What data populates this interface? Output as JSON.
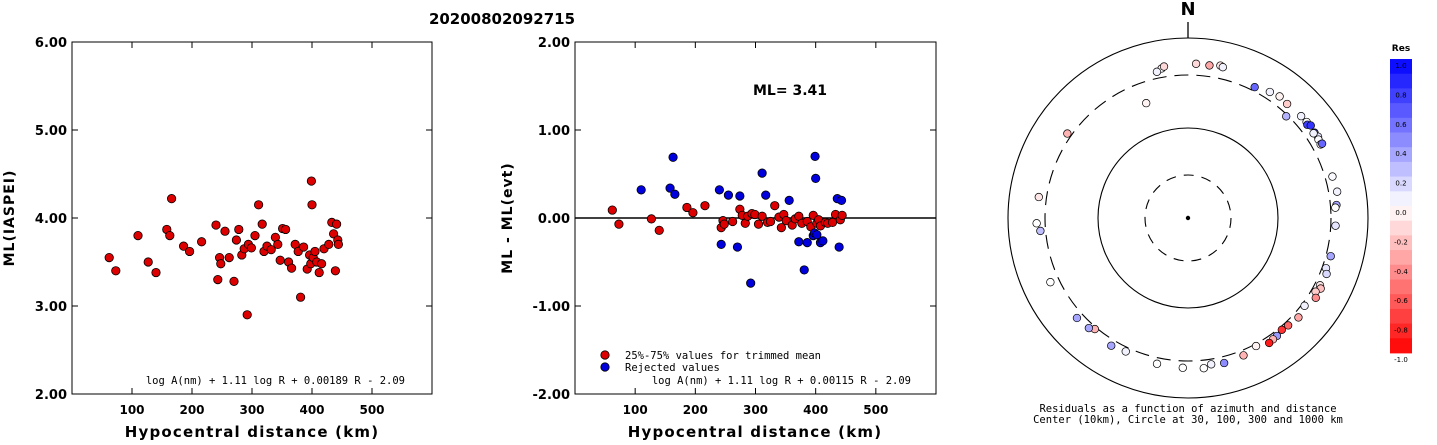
{
  "page_title": "20200802092715",
  "chart_data": [
    {
      "type": "scatter",
      "xlabel": "Hypocentral distance (km)",
      "ylabel": "ML(IASPEI)",
      "xlim": [
        0,
        600
      ],
      "ylim": [
        2.0,
        6.0
      ],
      "x_ticks": [
        "100",
        "200",
        "300",
        "400",
        "500"
      ],
      "y_ticks": [
        "2.00",
        "3.00",
        "4.00",
        "5.00",
        "6.00"
      ],
      "formula": "log A(nm) + 1.11 log R + 0.00189 R - 2.09",
      "grid": false,
      "series": [
        {
          "color": "#dd0000",
          "points": [
            [
              62,
              3.55
            ],
            [
              73,
              3.4
            ],
            [
              110,
              3.8
            ],
            [
              127,
              3.5
            ],
            [
              140,
              3.38
            ],
            [
              158,
              3.87
            ],
            [
              163,
              3.8
            ],
            [
              166,
              4.22
            ],
            [
              186,
              3.68
            ],
            [
              196,
              3.62
            ],
            [
              216,
              3.73
            ],
            [
              240,
              3.92
            ],
            [
              243,
              3.3
            ],
            [
              246,
              3.55
            ],
            [
              248,
              3.48
            ],
            [
              255,
              3.85
            ],
            [
              262,
              3.55
            ],
            [
              270,
              3.28
            ],
            [
              274,
              3.75
            ],
            [
              278,
              3.87
            ],
            [
              283,
              3.58
            ],
            [
              287,
              3.65
            ],
            [
              292,
              2.9
            ],
            [
              294,
              3.7
            ],
            [
              299,
              3.66
            ],
            [
              305,
              3.8
            ],
            [
              311,
              4.15
            ],
            [
              317,
              3.93
            ],
            [
              320,
              3.62
            ],
            [
              325,
              3.68
            ],
            [
              332,
              3.64
            ],
            [
              339,
              3.78
            ],
            [
              343,
              3.7
            ],
            [
              347,
              3.52
            ],
            [
              351,
              3.88
            ],
            [
              356,
              3.87
            ],
            [
              361,
              3.5
            ],
            [
              366,
              3.43
            ],
            [
              372,
              3.7
            ],
            [
              377,
              3.62
            ],
            [
              381,
              3.1
            ],
            [
              386,
              3.67
            ],
            [
              392,
              3.42
            ],
            [
              396,
              3.58
            ],
            [
              398,
              3.48
            ],
            [
              399,
              4.42
            ],
            [
              400,
              4.15
            ],
            [
              402,
              3.55
            ],
            [
              405,
              3.62
            ],
            [
              408,
              3.5
            ],
            [
              412,
              3.38
            ],
            [
              416,
              3.48
            ],
            [
              420,
              3.65
            ],
            [
              428,
              3.7
            ],
            [
              433,
              3.95
            ],
            [
              436,
              3.82
            ],
            [
              439,
              3.4
            ],
            [
              441,
              3.93
            ],
            [
              443,
              3.75
            ],
            [
              444,
              3.7
            ]
          ]
        }
      ]
    },
    {
      "type": "scatter",
      "xlabel": "Hypocentral distance (km)",
      "ylabel": "ML - ML(evt)",
      "xlim": [
        0,
        600
      ],
      "ylim": [
        -2.0,
        2.0
      ],
      "x_ticks": [
        "100",
        "200",
        "300",
        "400",
        "500"
      ],
      "y_ticks": [
        "-2.00",
        "-1.00",
        "0.00",
        "1.00",
        "2.00"
      ],
      "reference_line_y": 0,
      "annotation": "ML= 3.41",
      "formula": "log A(nm) + 1.11 log R + 0.00115 R - 2.09",
      "legend_position": "bottom-left",
      "grid": false,
      "series": [
        {
          "name": "25%-75% values for trimmed mean",
          "color": "#dd0000",
          "points": [
            [
              62,
              0.09
            ],
            [
              73,
              -0.07
            ],
            [
              127,
              -0.01
            ],
            [
              140,
              -0.14
            ],
            [
              186,
              0.12
            ],
            [
              196,
              0.06
            ],
            [
              216,
              0.14
            ],
            [
              243,
              -0.11
            ],
            [
              246,
              -0.03
            ],
            [
              248,
              -0.07
            ],
            [
              262,
              -0.04
            ],
            [
              274,
              0.1
            ],
            [
              278,
              0.03
            ],
            [
              283,
              -0.06
            ],
            [
              287,
              0.02
            ],
            [
              294,
              0.05
            ],
            [
              299,
              0.04
            ],
            [
              305,
              -0.07
            ],
            [
              311,
              0.02
            ],
            [
              320,
              -0.05
            ],
            [
              325,
              -0.04
            ],
            [
              332,
              0.14
            ],
            [
              339,
              0.01
            ],
            [
              343,
              -0.11
            ],
            [
              347,
              0.04
            ],
            [
              351,
              -0.03
            ],
            [
              361,
              -0.08
            ],
            [
              366,
              -0.01
            ],
            [
              372,
              0.02
            ],
            [
              377,
              -0.06
            ],
            [
              386,
              -0.04
            ],
            [
              392,
              -0.1
            ],
            [
              396,
              0.03
            ],
            [
              402,
              -0.06
            ],
            [
              405,
              -0.02
            ],
            [
              408,
              -0.09
            ],
            [
              416,
              -0.05
            ],
            [
              420,
              -0.06
            ],
            [
              428,
              -0.05
            ],
            [
              433,
              0.04
            ],
            [
              441,
              -0.02
            ],
            [
              444,
              0.03
            ]
          ]
        },
        {
          "name": "Rejected values",
          "color": "#0000dd",
          "points": [
            [
              110,
              0.32
            ],
            [
              158,
              0.34
            ],
            [
              163,
              0.69
            ],
            [
              166,
              0.27
            ],
            [
              240,
              0.32
            ],
            [
              243,
              -0.3
            ],
            [
              255,
              0.26
            ],
            [
              270,
              -0.33
            ],
            [
              274,
              0.25
            ],
            [
              292,
              -0.74
            ],
            [
              311,
              0.51
            ],
            [
              317,
              0.26
            ],
            [
              356,
              0.2
            ],
            [
              372,
              -0.27
            ],
            [
              381,
              -0.59
            ],
            [
              386,
              -0.28
            ],
            [
              396,
              -0.2
            ],
            [
              398,
              -0.17
            ],
            [
              399,
              0.7
            ],
            [
              400,
              0.45
            ],
            [
              402,
              -0.19
            ],
            [
              408,
              -0.28
            ],
            [
              412,
              -0.26
            ],
            [
              436,
              0.22
            ],
            [
              439,
              -0.33
            ],
            [
              443,
              0.2
            ]
          ]
        }
      ]
    },
    {
      "type": "polar-scatter",
      "north_label": "N",
      "caption_line1": "Residuals as a function of azimuth and distance",
      "caption_line2": "Center (10km), Circle at 30, 100, 300 and 1000 km",
      "colorbar_title": "Res",
      "colorbar_ticks": [
        "1.0",
        "0.8",
        "0.6",
        "0.4",
        "0.2",
        "0.0",
        "-0.2",
        "-0.4",
        "-0.6",
        "-0.8",
        "-1.0"
      ],
      "color_scale": {
        "positive": "#0000ff",
        "zero": "#ffffff",
        "negative": "#ff0000"
      },
      "rings_km": [
        30,
        100,
        300,
        1000
      ],
      "stations": [
        {
          "az": 8,
          "dist": 430,
          "res": -0.35
        },
        {
          "az": 3,
          "dist": 435,
          "res": -0.15
        },
        {
          "az": 12,
          "dist": 455,
          "res": -0.1
        },
        {
          "az": 13,
          "dist": 440,
          "res": 0.05
        },
        {
          "az": 350,
          "dist": 400,
          "res": 0.0
        },
        {
          "az": 348,
          "dist": 370,
          "res": 0.05
        },
        {
          "az": 351,
          "dist": 420,
          "res": -0.15
        },
        {
          "az": 27,
          "dist": 340,
          "res": 0.6
        },
        {
          "az": 33,
          "dist": 380,
          "res": 0.05
        },
        {
          "az": 37,
          "dist": 405,
          "res": -0.05
        },
        {
          "az": 41,
          "dist": 390,
          "res": -0.2
        },
        {
          "az": 48,
          "dist": 405,
          "res": 0.05
        },
        {
          "az": 51,
          "dist": 410,
          "res": 0.0
        },
        {
          "az": 52,
          "dist": 395,
          "res": 0.75
        },
        {
          "az": 53,
          "dist": 425,
          "res": 0.8
        },
        {
          "az": 56,
          "dist": 410,
          "res": 0.7
        },
        {
          "az": 58,
          "dist": 420,
          "res": 0.1
        },
        {
          "az": 56,
          "dist": 395,
          "res": 0.05
        },
        {
          "az": 59,
          "dist": 405,
          "res": 0.02
        },
        {
          "az": 61,
          "dist": 398,
          "res": -0.05
        },
        {
          "az": 61,
          "dist": 420,
          "res": 0.6
        },
        {
          "az": 44,
          "dist": 290,
          "res": 0.3
        },
        {
          "az": 74,
          "dist": 380,
          "res": 0.02
        },
        {
          "az": 80,
          "dist": 395,
          "res": 0.05
        },
        {
          "az": 85,
          "dist": 365,
          "res": 0.35
        },
        {
          "az": 86,
          "dist": 350,
          "res": 0.0
        },
        {
          "az": 93,
          "dist": 350,
          "res": 0.1
        },
        {
          "az": 105,
          "dist": 350,
          "res": 0.35
        },
        {
          "az": 110,
          "dist": 340,
          "res": 0.1
        },
        {
          "az": 112,
          "dist": 370,
          "res": 0.15
        },
        {
          "az": 117,
          "dist": 355,
          "res": -0.1
        },
        {
          "az": 118,
          "dist": 380,
          "res": -0.25
        },
        {
          "az": 120,
          "dist": 345,
          "res": -0.2
        },
        {
          "az": 122,
          "dist": 385,
          "res": -0.45
        },
        {
          "az": 127,
          "dist": 330,
          "res": 0.05
        },
        {
          "az": 132,
          "dist": 360,
          "res": -0.35
        },
        {
          "az": 137,
          "dist": 340,
          "res": -0.6
        },
        {
          "az": 140,
          "dist": 330,
          "res": -0.8
        },
        {
          "az": 143,
          "dist": 350,
          "res": 0.4
        },
        {
          "az": 145,
          "dist": 355,
          "res": -0.3
        },
        {
          "az": 147,
          "dist": 365,
          "res": -0.9
        },
        {
          "az": 152,
          "dist": 320,
          "res": -0.05
        },
        {
          "az": 158,
          "dist": 355,
          "res": -0.3
        },
        {
          "az": 166,
          "dist": 370,
          "res": 0.45
        },
        {
          "az": 171,
          "dist": 355,
          "res": 0.05
        },
        {
          "az": 174,
          "dist": 390,
          "res": 0.0
        },
        {
          "az": 182,
          "dist": 375,
          "res": 0.0
        },
        {
          "az": 192,
          "dist": 365,
          "res": 0.0
        },
        {
          "az": 205,
          "dist": 345,
          "res": 0.05
        },
        {
          "az": 211,
          "dist": 365,
          "res": 0.35
        },
        {
          "az": 220,
          "dist": 320,
          "res": -0.3
        },
        {
          "az": 222,
          "dist": 355,
          "res": 0.35
        },
        {
          "az": 228,
          "dist": 370,
          "res": 0.35
        },
        {
          "az": 245,
          "dist": 400,
          "res": 0.0
        },
        {
          "az": 265,
          "dist": 355,
          "res": 0.25
        },
        {
          "az": 268,
          "dist": 395,
          "res": 0.0
        },
        {
          "az": 278,
          "dist": 385,
          "res": -0.1
        },
        {
          "az": 305,
          "dist": 345,
          "res": -0.3
        },
        {
          "az": 340,
          "dist": 195,
          "res": -0.05
        }
      ]
    }
  ]
}
